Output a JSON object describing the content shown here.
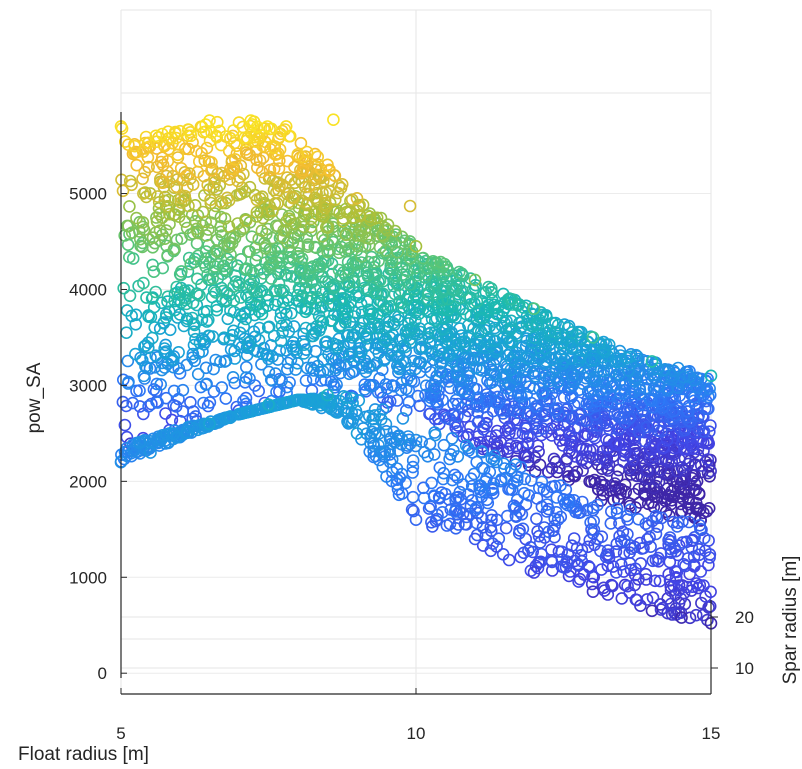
{
  "chart_data": {
    "type": "scatter",
    "title": "",
    "xlabel": "Float radius [m]",
    "ylabel": "pow_SA",
    "zlabel": "Spar radius [m]",
    "xlim": [
      5,
      15
    ],
    "ylim": [
      -50,
      5850
    ],
    "zlim": [
      5,
      25
    ],
    "x_ticks": [
      "5",
      "10",
      "15"
    ],
    "y_ticks": [
      "0",
      "1000",
      "2000",
      "3000",
      "4000",
      "5000"
    ],
    "z_ticks": [
      "10",
      "20"
    ],
    "grid": true,
    "marker": "open-circle",
    "colormap": "parula",
    "colormap_stops": [
      "#3e26a8",
      "#4245e6",
      "#2c79f6",
      "#1aa0d9",
      "#1bbab0",
      "#53c57c",
      "#a9c03a",
      "#f3bb30",
      "#f9e424"
    ],
    "series": [
      {
        "points_sampled": [
          {
            "x": 5.0,
            "y": 5700
          },
          {
            "x": 6.0,
            "y": 5650
          },
          {
            "x": 6.5,
            "y": 5760
          },
          {
            "x": 7.2,
            "y": 5760
          },
          {
            "x": 7.8,
            "y": 5700
          },
          {
            "x": 8.6,
            "y": 5770
          },
          {
            "x": 8.5,
            "y": 5300
          },
          {
            "x": 9.0,
            "y": 4950
          },
          {
            "x": 9.9,
            "y": 4870
          },
          {
            "x": 10.0,
            "y": 4450
          },
          {
            "x": 11.0,
            "y": 4100
          },
          {
            "x": 12.0,
            "y": 3800
          },
          {
            "x": 13.0,
            "y": 3500
          },
          {
            "x": 14.0,
            "y": 3250
          },
          {
            "x": 15.0,
            "y": 3100
          },
          {
            "x": 5.0,
            "y": 2200
          },
          {
            "x": 5.5,
            "y": 2300
          },
          {
            "x": 6.5,
            "y": 2600
          },
          {
            "x": 7.5,
            "y": 2800
          },
          {
            "x": 8.5,
            "y": 2900
          },
          {
            "x": 9.0,
            "y": 2500
          },
          {
            "x": 9.5,
            "y": 2050
          },
          {
            "x": 10.0,
            "y": 1600
          },
          {
            "x": 11.0,
            "y": 1400
          },
          {
            "x": 12.0,
            "y": 1050
          },
          {
            "x": 13.0,
            "y": 850
          },
          {
            "x": 14.0,
            "y": 650
          },
          {
            "x": 14.5,
            "y": 580
          },
          {
            "x": 15.0,
            "y": 520
          }
        ]
      }
    ]
  }
}
